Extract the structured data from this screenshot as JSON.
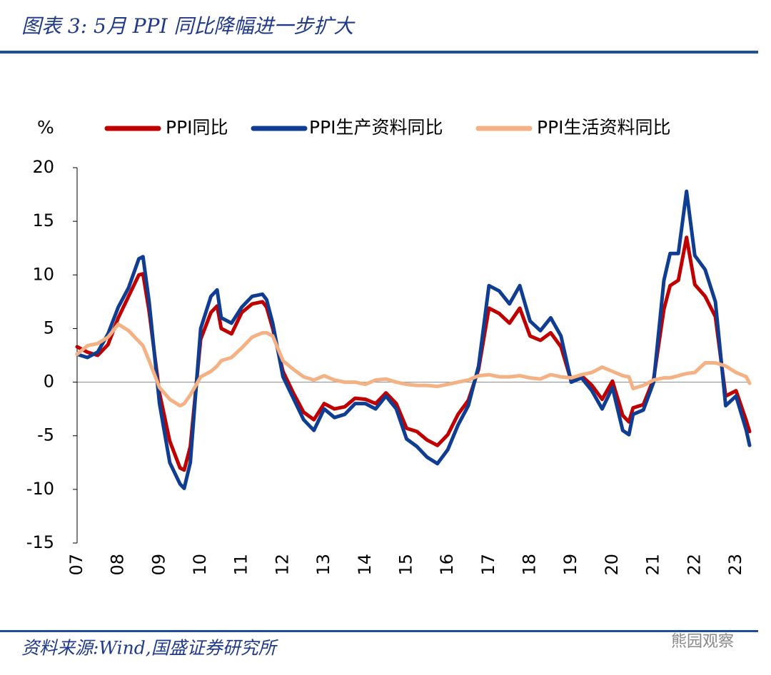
{
  "chart_data": {
    "type": "line",
    "title": "图表 3:  5月 PPI 同比降幅进一步扩大",
    "y_label": "%",
    "source": "资料来源:Wind,国盛证券研究所",
    "watermark": "熊园观察",
    "x": [
      2007,
      2007.25,
      2007.5,
      2007.75,
      2008,
      2008.25,
      2008.5,
      2008.6,
      2008.75,
      2009,
      2009.25,
      2009.5,
      2009.6,
      2009.75,
      2010,
      2010.25,
      2010.4,
      2010.5,
      2010.75,
      2011,
      2011.25,
      2011.5,
      2011.6,
      2011.75,
      2012,
      2012.25,
      2012.5,
      2012.75,
      2013,
      2013.25,
      2013.5,
      2013.75,
      2014,
      2014.25,
      2014.5,
      2014.75,
      2015,
      2015.25,
      2015.5,
      2015.75,
      2016,
      2016.25,
      2016.5,
      2016.75,
      2017,
      2017.25,
      2017.5,
      2017.75,
      2018,
      2018.25,
      2018.5,
      2018.75,
      2019,
      2019.25,
      2019.5,
      2019.75,
      2020,
      2020.25,
      2020.4,
      2020.5,
      2020.75,
      2021,
      2021.25,
      2021.4,
      2021.6,
      2021.8,
      2022,
      2022.25,
      2022.5,
      2022.75,
      2023,
      2023.25,
      2023.33
    ],
    "series": [
      {
        "name": "PPI同比",
        "color": "#c00000",
        "values": [
          3.3,
          2.8,
          2.5,
          3.5,
          6.0,
          8.0,
          10.0,
          10.1,
          6.6,
          -1,
          -5.5,
          -8,
          -8.2,
          -6,
          4,
          6.5,
          7.1,
          5,
          4.5,
          6.5,
          7.3,
          7.5,
          7.0,
          5.0,
          1,
          -1,
          -2.8,
          -3.5,
          -2,
          -2.5,
          -2.3,
          -1.5,
          -1.6,
          -2,
          -1,
          -2,
          -4.3,
          -4.6,
          -5.4,
          -5.9,
          -4.9,
          -3,
          -1.7,
          1.2,
          6.9,
          6.4,
          5.5,
          6.9,
          4.3,
          3.9,
          4.6,
          3.3,
          0.1,
          0.6,
          -0.3,
          -1.6,
          0.1,
          -3.1,
          -3.7,
          -2.4,
          -2.1,
          0.3,
          6.8,
          9.0,
          9.5,
          13.5,
          9.1,
          8.0,
          6.1,
          -1.3,
          -0.8,
          -3.6,
          -4.6
        ]
      },
      {
        "name": "PPI生产资料同比",
        "color": "#0f3d91",
        "values": [
          2.6,
          2.3,
          2.8,
          4.5,
          7.0,
          8.8,
          11.5,
          11.7,
          7.5,
          -2.0,
          -7.5,
          -9.5,
          -9.9,
          -7.5,
          5.0,
          8.0,
          8.6,
          6.0,
          5.5,
          7.0,
          8.0,
          8.2,
          7.7,
          5.5,
          0.5,
          -1.5,
          -3.5,
          -4.5,
          -2.5,
          -3.3,
          -3.0,
          -2.0,
          -2.0,
          -2.5,
          -1.3,
          -2.5,
          -5.3,
          -6.0,
          -7.0,
          -7.6,
          -6.3,
          -4.0,
          -2.2,
          1.5,
          9.0,
          8.5,
          7.3,
          9.0,
          5.7,
          4.8,
          6.0,
          4.3,
          0.0,
          0.4,
          -0.8,
          -2.5,
          -0.5,
          -4.5,
          -4.9,
          -3.0,
          -2.6,
          0.0,
          9.5,
          12.0,
          12.0,
          17.8,
          11.8,
          10.5,
          7.5,
          -2.2,
          -1.3,
          -4.5,
          -5.9
        ]
      },
      {
        "name": "PPI生活资料同比",
        "color": "#f4b183",
        "values": [
          2.6,
          3.4,
          3.6,
          4.2,
          5.4,
          4.8,
          3.8,
          3.4,
          2.0,
          -0.5,
          -1.6,
          -2.2,
          -2.0,
          -1.2,
          0.5,
          1.0,
          1.5,
          2.0,
          2.3,
          3.2,
          4.2,
          4.6,
          4.6,
          4.3,
          2.0,
          1.2,
          0.5,
          0.2,
          0.6,
          0.2,
          0,
          0,
          -0.2,
          0.2,
          0.3,
          0,
          -0.2,
          -0.3,
          -0.3,
          -0.4,
          -0.2,
          0,
          0.2,
          0.6,
          0.7,
          0.5,
          0.5,
          0.6,
          0.4,
          0.3,
          0.7,
          0.5,
          0.4,
          0.7,
          0.9,
          1.4,
          1.0,
          0.6,
          0.5,
          -0.6,
          -0.3,
          0.2,
          0.4,
          0.4,
          0.6,
          0.8,
          0.9,
          1.8,
          1.8,
          1.5,
          0.9,
          0.5,
          -0.1
        ]
      }
    ],
    "xlim": [
      2007,
      2023.33
    ],
    "xticks": [
      {
        "value": 2007,
        "label": "07"
      },
      {
        "value": 2008,
        "label": "08"
      },
      {
        "value": 2009,
        "label": "09"
      },
      {
        "value": 2010,
        "label": "10"
      },
      {
        "value": 2011,
        "label": "11"
      },
      {
        "value": 2012,
        "label": "12"
      },
      {
        "value": 2013,
        "label": "13"
      },
      {
        "value": 2014,
        "label": "14"
      },
      {
        "value": 2015,
        "label": "15"
      },
      {
        "value": 2016,
        "label": "16"
      },
      {
        "value": 2017,
        "label": "17"
      },
      {
        "value": 2018,
        "label": "18"
      },
      {
        "value": 2019,
        "label": "19"
      },
      {
        "value": 2020,
        "label": "20"
      },
      {
        "value": 2021,
        "label": "21"
      },
      {
        "value": 2022,
        "label": "22"
      },
      {
        "value": 2023,
        "label": "23"
      }
    ],
    "ylim": [
      -15,
      20
    ],
    "yticks": [
      -15,
      -10,
      -5,
      0,
      5,
      10,
      15,
      20
    ],
    "zero_line": true,
    "legend": "top"
  }
}
